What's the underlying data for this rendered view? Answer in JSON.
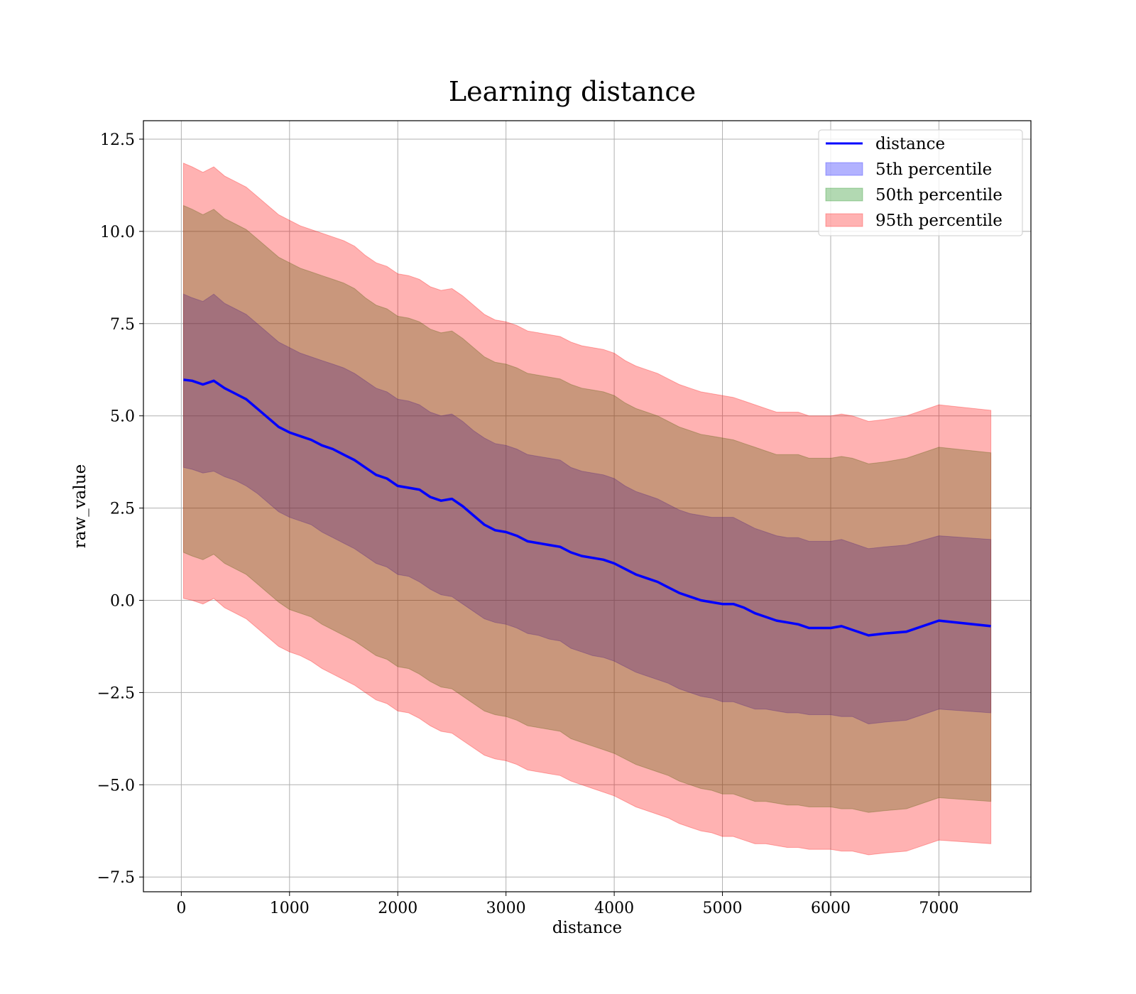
{
  "chart_data": {
    "type": "line",
    "title": "Learning distance",
    "xlabel": "distance",
    "ylabel": "raw_value",
    "xlim": [
      -350,
      7850
    ],
    "ylim": [
      -7.9,
      13.0
    ],
    "xticks": [
      0,
      1000,
      2000,
      3000,
      4000,
      5000,
      6000,
      7000
    ],
    "xtick_labels": [
      "0",
      "1000",
      "2000",
      "3000",
      "4000",
      "5000",
      "6000",
      "7000"
    ],
    "yticks": [
      -7.5,
      -5.0,
      -2.5,
      0.0,
      2.5,
      5.0,
      7.5,
      10.0,
      12.5
    ],
    "ytick_labels": [
      "−7.5",
      "−5.0",
      "−2.5",
      "0.0",
      "2.5",
      "5.0",
      "7.5",
      "10.0",
      "12.5"
    ],
    "grid": true,
    "legend_position": "top-right",
    "x": [
      20,
      100,
      200,
      300,
      400,
      500,
      600,
      700,
      800,
      900,
      1000,
      1100,
      1200,
      1300,
      1400,
      1500,
      1600,
      1700,
      1800,
      1900,
      2000,
      2100,
      2200,
      2300,
      2400,
      2500,
      2600,
      2700,
      2800,
      2900,
      3000,
      3100,
      3200,
      3300,
      3400,
      3500,
      3600,
      3700,
      3800,
      3900,
      4000,
      4100,
      4200,
      4300,
      4400,
      4500,
      4600,
      4700,
      4800,
      4900,
      5000,
      5100,
      5200,
      5300,
      5400,
      5500,
      5600,
      5700,
      5800,
      5900,
      6000,
      6100,
      6200,
      6350,
      6500,
      6700,
      7000,
      7480
    ],
    "series": [
      {
        "name": "distance",
        "color": "#0000ff",
        "values": [
          5.98,
          5.95,
          5.85,
          5.95,
          5.75,
          5.6,
          5.45,
          5.2,
          4.95,
          4.7,
          4.55,
          4.45,
          4.35,
          4.2,
          4.1,
          3.95,
          3.8,
          3.6,
          3.4,
          3.3,
          3.1,
          3.05,
          3.0,
          2.8,
          2.7,
          2.75,
          2.55,
          2.3,
          2.05,
          1.9,
          1.85,
          1.75,
          1.6,
          1.55,
          1.5,
          1.45,
          1.3,
          1.2,
          1.15,
          1.1,
          1.0,
          0.85,
          0.7,
          0.6,
          0.5,
          0.35,
          0.2,
          0.1,
          0.0,
          -0.05,
          -0.1,
          -0.1,
          -0.2,
          -0.35,
          -0.45,
          -0.55,
          -0.6,
          -0.65,
          -0.75,
          -0.75,
          -0.75,
          -0.7,
          -0.8,
          -0.95,
          -0.9,
          -0.85,
          -0.55,
          -0.7
        ]
      }
    ],
    "bands": [
      {
        "name": "5th percentile",
        "color": "#0000ff",
        "alpha": 0.3,
        "lower": [
          3.6,
          3.55,
          3.45,
          3.5,
          3.35,
          3.25,
          3.1,
          2.9,
          2.65,
          2.4,
          2.25,
          2.15,
          2.05,
          1.85,
          1.7,
          1.55,
          1.4,
          1.2,
          1.0,
          0.9,
          0.7,
          0.65,
          0.5,
          0.3,
          0.15,
          0.1,
          -0.1,
          -0.3,
          -0.5,
          -0.6,
          -0.65,
          -0.75,
          -0.9,
          -0.95,
          -1.05,
          -1.1,
          -1.3,
          -1.4,
          -1.5,
          -1.55,
          -1.65,
          -1.8,
          -1.95,
          -2.05,
          -2.15,
          -2.25,
          -2.4,
          -2.5,
          -2.6,
          -2.65,
          -2.75,
          -2.75,
          -2.85,
          -2.95,
          -2.95,
          -3.0,
          -3.05,
          -3.05,
          -3.1,
          -3.1,
          -3.1,
          -3.15,
          -3.15,
          -3.35,
          -3.3,
          -3.25,
          -2.95,
          -3.05
        ],
        "upper": [
          8.3,
          8.2,
          8.1,
          8.3,
          8.05,
          7.9,
          7.75,
          7.5,
          7.25,
          7.0,
          6.85,
          6.7,
          6.6,
          6.5,
          6.4,
          6.3,
          6.15,
          5.95,
          5.75,
          5.65,
          5.45,
          5.4,
          5.3,
          5.1,
          5.0,
          5.05,
          4.85,
          4.6,
          4.4,
          4.25,
          4.2,
          4.1,
          3.95,
          3.9,
          3.85,
          3.8,
          3.6,
          3.5,
          3.45,
          3.4,
          3.3,
          3.1,
          2.95,
          2.85,
          2.75,
          2.6,
          2.45,
          2.35,
          2.3,
          2.25,
          2.25,
          2.25,
          2.1,
          1.95,
          1.85,
          1.75,
          1.7,
          1.7,
          1.6,
          1.6,
          1.6,
          1.65,
          1.55,
          1.4,
          1.45,
          1.5,
          1.75,
          1.65
        ]
      },
      {
        "name": "50th percentile",
        "color": "#008000",
        "alpha": 0.3,
        "lower": [
          1.3,
          1.2,
          1.1,
          1.25,
          1.0,
          0.85,
          0.7,
          0.45,
          0.2,
          -0.05,
          -0.25,
          -0.35,
          -0.45,
          -0.65,
          -0.8,
          -0.95,
          -1.1,
          -1.3,
          -1.5,
          -1.6,
          -1.8,
          -1.85,
          -2.0,
          -2.2,
          -2.35,
          -2.4,
          -2.6,
          -2.8,
          -3.0,
          -3.1,
          -3.15,
          -3.25,
          -3.4,
          -3.45,
          -3.5,
          -3.55,
          -3.75,
          -3.85,
          -3.95,
          -4.05,
          -4.15,
          -4.3,
          -4.45,
          -4.55,
          -4.65,
          -4.75,
          -4.9,
          -5.0,
          -5.1,
          -5.15,
          -5.25,
          -5.25,
          -5.35,
          -5.45,
          -5.45,
          -5.5,
          -5.55,
          -5.55,
          -5.6,
          -5.6,
          -5.6,
          -5.65,
          -5.65,
          -5.75,
          -5.7,
          -5.65,
          -5.35,
          -5.45
        ],
        "upper": [
          10.7,
          10.6,
          10.45,
          10.6,
          10.35,
          10.2,
          10.05,
          9.8,
          9.55,
          9.3,
          9.15,
          9.0,
          8.9,
          8.8,
          8.7,
          8.6,
          8.45,
          8.2,
          8.0,
          7.9,
          7.7,
          7.65,
          7.55,
          7.35,
          7.25,
          7.3,
          7.1,
          6.85,
          6.6,
          6.45,
          6.4,
          6.3,
          6.15,
          6.1,
          6.05,
          6.0,
          5.85,
          5.75,
          5.7,
          5.65,
          5.55,
          5.35,
          5.2,
          5.1,
          5.0,
          4.85,
          4.7,
          4.6,
          4.5,
          4.45,
          4.4,
          4.35,
          4.25,
          4.15,
          4.05,
          3.95,
          3.95,
          3.95,
          3.85,
          3.85,
          3.85,
          3.9,
          3.85,
          3.7,
          3.75,
          3.85,
          4.15,
          4.0
        ]
      },
      {
        "name": "95th percentile",
        "color": "#ff0000",
        "alpha": 0.3,
        "lower": [
          0.05,
          0.0,
          -0.1,
          0.05,
          -0.2,
          -0.35,
          -0.5,
          -0.75,
          -1.0,
          -1.25,
          -1.4,
          -1.5,
          -1.65,
          -1.85,
          -2.0,
          -2.15,
          -2.3,
          -2.5,
          -2.7,
          -2.8,
          -3.0,
          -3.05,
          -3.2,
          -3.4,
          -3.55,
          -3.6,
          -3.8,
          -4.0,
          -4.2,
          -4.3,
          -4.35,
          -4.45,
          -4.6,
          -4.65,
          -4.7,
          -4.75,
          -4.9,
          -5.0,
          -5.1,
          -5.2,
          -5.3,
          -5.45,
          -5.6,
          -5.7,
          -5.8,
          -5.9,
          -6.05,
          -6.15,
          -6.25,
          -6.3,
          -6.4,
          -6.4,
          -6.5,
          -6.6,
          -6.6,
          -6.65,
          -6.7,
          -6.7,
          -6.75,
          -6.75,
          -6.75,
          -6.8,
          -6.8,
          -6.9,
          -6.85,
          -6.8,
          -6.5,
          -6.6
        ],
        "upper": [
          11.85,
          11.75,
          11.6,
          11.75,
          11.5,
          11.35,
          11.2,
          10.95,
          10.7,
          10.45,
          10.3,
          10.15,
          10.05,
          9.95,
          9.85,
          9.75,
          9.6,
          9.35,
          9.15,
          9.05,
          8.85,
          8.8,
          8.7,
          8.5,
          8.4,
          8.45,
          8.25,
          8.0,
          7.75,
          7.6,
          7.55,
          7.45,
          7.3,
          7.25,
          7.2,
          7.15,
          7.0,
          6.9,
          6.85,
          6.8,
          6.7,
          6.5,
          6.35,
          6.25,
          6.15,
          6.0,
          5.85,
          5.75,
          5.65,
          5.6,
          5.55,
          5.5,
          5.4,
          5.3,
          5.2,
          5.1,
          5.1,
          5.1,
          5.0,
          5.0,
          5.0,
          5.05,
          5.0,
          4.85,
          4.9,
          5.0,
          5.3,
          5.15
        ]
      }
    ]
  }
}
